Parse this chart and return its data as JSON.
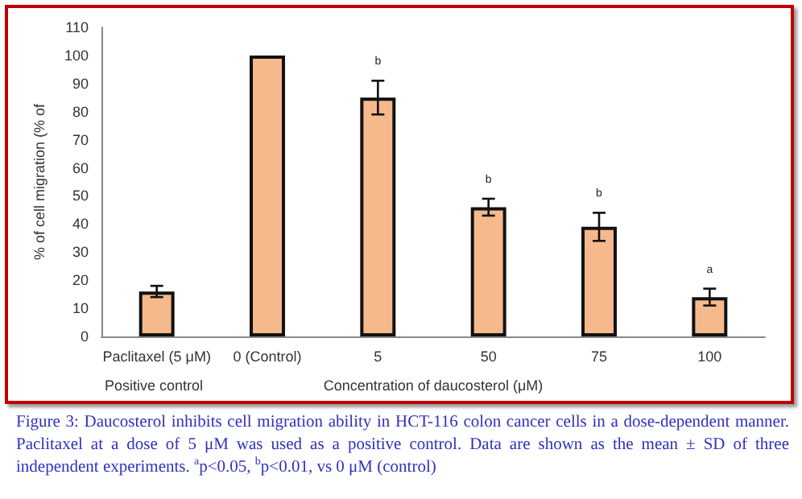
{
  "chart_data": {
    "type": "bar",
    "ylabel": "% of cell migration (% of",
    "xlabel": "Concentration of daucosterol (μM)",
    "categories": [
      "Paclitaxel (5 μM)",
      "0 (Control)",
      "5",
      "50",
      "75",
      "100"
    ],
    "values": [
      16,
      100,
      85,
      46,
      39,
      14
    ],
    "errors": [
      2,
      null,
      6,
      3,
      5,
      3
    ],
    "color": "#f6b98c",
    "ylim": [
      0,
      110
    ],
    "yticks": [
      0,
      10,
      20,
      30,
      40,
      50,
      60,
      70,
      80,
      90,
      100,
      110
    ],
    "grid": false,
    "annotations": [
      {
        "text": "b",
        "x": "5",
        "y": 91
      },
      {
        "text": "b",
        "x": "50",
        "y": 49
      },
      {
        "text": "b",
        "x": "75",
        "y": 44
      },
      {
        "text": "a",
        "x": "100",
        "y": 17
      },
      "Positive control",
      "Figure 3: Daucosterol inhibits cell migration ability in HCT-116 colon cancer cells in a dose-dependent manner. Paclitaxel at a dose of 5 μM was used as a positive control. Data are shown as the mean ± SD of three independent experiments. $^{a}$p<0.05, $^{b}$p<0.01, vs 0 μM (control)"
    ]
  }
}
